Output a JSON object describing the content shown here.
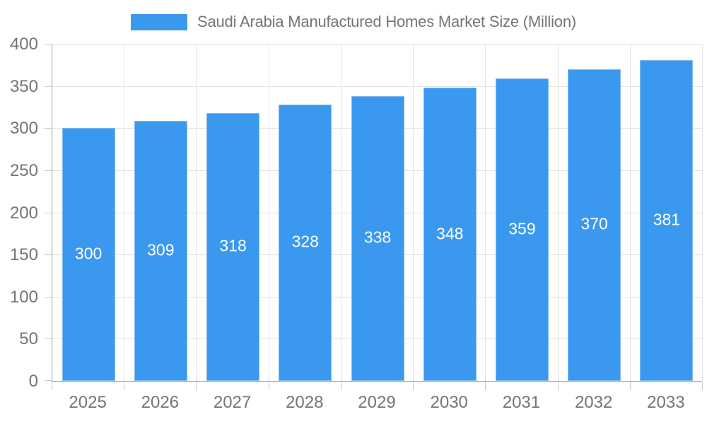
{
  "legend": {
    "label": "Saudi Arabia Manufactured Homes Market Size (Million)"
  },
  "colors": {
    "bar": "#3a99ef",
    "bar_border": "#84bcf4",
    "grid": "#e3e3e3",
    "axis": "#999999",
    "tick": "#c9c9c9",
    "text": "#757575",
    "bar_label": "#ffffff"
  },
  "chart_data": {
    "type": "bar",
    "title": "Saudi Arabia Manufactured Homes Market Size (Million)",
    "categories": [
      "2025",
      "2026",
      "2027",
      "2028",
      "2029",
      "2030",
      "2031",
      "2032",
      "2033"
    ],
    "values": [
      300,
      309,
      318,
      328,
      338,
      348,
      359,
      370,
      381
    ],
    "xlabel": "",
    "ylabel": "",
    "ylim": [
      0,
      400
    ],
    "ytick_step": 50,
    "ytick_labels": [
      "0",
      "50",
      "100",
      "150",
      "200",
      "250",
      "300",
      "350",
      "400"
    ],
    "grid": true,
    "legend_position": "top",
    "bar_label_position": "inside-center",
    "bar_color": "#3a99ef"
  }
}
